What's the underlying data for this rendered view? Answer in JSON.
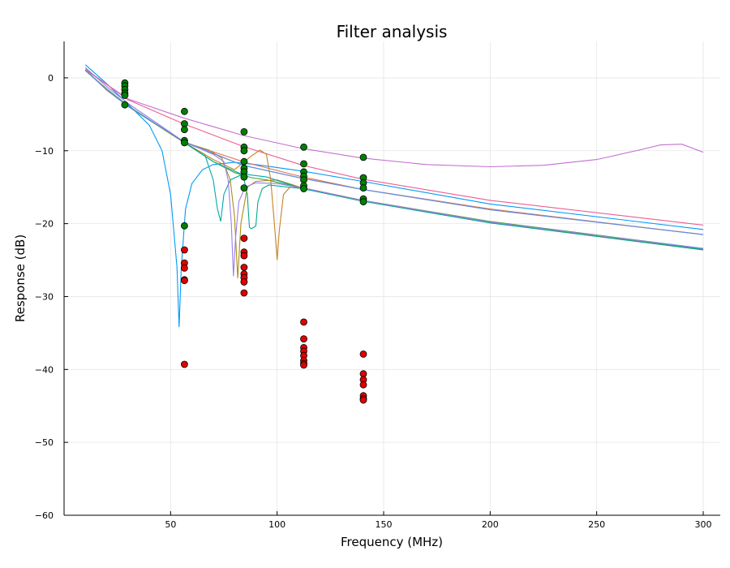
{
  "chart_data": {
    "type": "line",
    "title": "Filter analysis",
    "xlabel": "Frequency (MHz)",
    "ylabel": "Response (dB)",
    "xlim": [
      0,
      308
    ],
    "ylim": [
      -60,
      5
    ],
    "xticks": [
      50,
      100,
      150,
      200,
      250,
      300
    ],
    "yticks": [
      0,
      -10,
      -20,
      -30,
      -40,
      -50,
      -60
    ],
    "ytick_labels": [
      "0",
      "−10",
      "−20",
      "−30",
      "−40",
      "−50",
      "−60"
    ],
    "grid": true,
    "legend": "none",
    "series": [
      {
        "color": "#009af9",
        "points": [
          [
            10,
            1.8
          ],
          [
            20,
            -0.8
          ],
          [
            30,
            -3.6
          ],
          [
            40,
            -6.5
          ],
          [
            46,
            -10
          ],
          [
            50,
            -16
          ],
          [
            53,
            -26
          ],
          [
            54,
            -34.2
          ],
          [
            55,
            -26
          ],
          [
            57,
            -18
          ],
          [
            60,
            -14.5
          ],
          [
            65,
            -12.6
          ],
          [
            70,
            -11.9
          ],
          [
            80,
            -11.6
          ],
          [
            90,
            -11.9
          ],
          [
            112,
            -12.8
          ],
          [
            140,
            -14.2
          ],
          [
            200,
            -17.3
          ],
          [
            300,
            -20.8
          ]
        ]
      },
      {
        "color": "#e26f46",
        "points": [
          [
            10,
            1.1
          ],
          [
            20,
            -1.7
          ],
          [
            30,
            -3.9
          ],
          [
            56,
            -8.8
          ],
          [
            85,
            -11.6
          ],
          [
            112,
            -13.6
          ],
          [
            140,
            -15.3
          ],
          [
            200,
            -18.0
          ],
          [
            300,
            -21.5
          ]
        ]
      },
      {
        "color": "#3da44d",
        "points": [
          [
            10,
            1.0
          ],
          [
            20,
            -1.5
          ],
          [
            30,
            -3.8
          ],
          [
            56,
            -8.8
          ],
          [
            70,
            -11.5
          ],
          [
            80,
            -13.0
          ],
          [
            88,
            -13.7
          ],
          [
            95,
            -14.0
          ],
          [
            112,
            -15.1
          ],
          [
            140,
            -16.8
          ],
          [
            200,
            -19.7
          ],
          [
            300,
            -23.4
          ]
        ]
      },
      {
        "color": "#c271d2",
        "points": [
          [
            10,
            1.2
          ],
          [
            20,
            -0.9
          ],
          [
            30,
            -2.9
          ],
          [
            56,
            -5.5
          ],
          [
            84,
            -7.9
          ],
          [
            112,
            -9.7
          ],
          [
            140,
            -11.0
          ],
          [
            170,
            -11.9
          ],
          [
            200,
            -12.2
          ],
          [
            225,
            -12.0
          ],
          [
            250,
            -11.2
          ],
          [
            270,
            -9.9
          ],
          [
            280,
            -9.2
          ],
          [
            290,
            -9.1
          ],
          [
            300,
            -10.2
          ]
        ]
      },
      {
        "color": "#ac8d18",
        "points": [
          [
            10,
            1.0
          ],
          [
            20,
            -1.6
          ],
          [
            30,
            -3.9
          ],
          [
            56,
            -8.8
          ],
          [
            68,
            -9.9
          ],
          [
            74,
            -11
          ],
          [
            78,
            -14
          ],
          [
            80,
            -19
          ],
          [
            81.5,
            -27.5
          ],
          [
            83,
            -20
          ],
          [
            86,
            -15
          ],
          [
            90,
            -14.2
          ],
          [
            100,
            -14.0
          ],
          [
            112,
            -15.1
          ],
          [
            140,
            -16.8
          ],
          [
            200,
            -19.8
          ],
          [
            300,
            -23.5
          ]
        ]
      },
      {
        "color": "#00a9ad",
        "points": [
          [
            10,
            1.0
          ],
          [
            20,
            -1.6
          ],
          [
            30,
            -3.9
          ],
          [
            56,
            -8.8
          ],
          [
            66,
            -10.5
          ],
          [
            70,
            -14
          ],
          [
            72,
            -18
          ],
          [
            73.5,
            -19.7
          ],
          [
            75,
            -16
          ],
          [
            78,
            -14
          ],
          [
            84,
            -13.2
          ],
          [
            95,
            -13.6
          ],
          [
            112,
            -15.2
          ],
          [
            140,
            -16.9
          ],
          [
            200,
            -19.9
          ],
          [
            300,
            -23.5
          ]
        ]
      },
      {
        "color": "#ed5d92",
        "points": [
          [
            10,
            1.1
          ],
          [
            20,
            -0.9
          ],
          [
            30,
            -3.0
          ],
          [
            56,
            -6.3
          ],
          [
            84,
            -9.4
          ],
          [
            112,
            -12.0
          ],
          [
            140,
            -13.9
          ],
          [
            200,
            -16.8
          ],
          [
            300,
            -20.2
          ]
        ]
      },
      {
        "color": "#c68225",
        "points": [
          [
            10,
            1.0
          ],
          [
            20,
            -1.6
          ],
          [
            30,
            -3.9
          ],
          [
            56,
            -8.8
          ],
          [
            70,
            -11.2
          ],
          [
            80,
            -12.6
          ],
          [
            88,
            -10.7
          ],
          [
            92,
            -9.9
          ],
          [
            95,
            -10.5
          ],
          [
            97,
            -14
          ],
          [
            99,
            -21
          ],
          [
            100,
            -25.0
          ],
          [
            101,
            -21
          ],
          [
            103,
            -16
          ],
          [
            106,
            -15
          ],
          [
            112,
            -15.1
          ],
          [
            140,
            -16.8
          ],
          [
            200,
            -19.8
          ],
          [
            300,
            -23.6
          ]
        ]
      },
      {
        "color": "#00a98d",
        "points": [
          [
            10,
            1.0
          ],
          [
            20,
            -1.6
          ],
          [
            30,
            -3.9
          ],
          [
            56,
            -8.8
          ],
          [
            70,
            -11.5
          ],
          [
            80,
            -12.8
          ],
          [
            84,
            -13.3
          ],
          [
            86,
            -16
          ],
          [
            87,
            -20.5
          ],
          [
            88,
            -20.7
          ],
          [
            90,
            -20.3
          ],
          [
            91,
            -17
          ],
          [
            93,
            -15.2
          ],
          [
            96,
            -14.7
          ],
          [
            112,
            -15.2
          ],
          [
            140,
            -16.9
          ],
          [
            200,
            -19.9
          ],
          [
            300,
            -23.6
          ]
        ]
      },
      {
        "color": "#8e971e",
        "points": [
          [
            10,
            1.1
          ],
          [
            20,
            -1.6
          ],
          [
            30,
            -3.9
          ],
          [
            56,
            -8.8
          ],
          [
            84,
            -12.0
          ],
          [
            112,
            -13.8
          ],
          [
            140,
            -15.3
          ],
          [
            200,
            -18.1
          ],
          [
            300,
            -21.5
          ]
        ]
      },
      {
        "color": "#9b7fe9",
        "points": [
          [
            10,
            1.4
          ],
          [
            20,
            -1.2
          ],
          [
            30,
            -3.5
          ],
          [
            56,
            -8.7
          ],
          [
            70,
            -10.5
          ],
          [
            75,
            -11.5
          ],
          [
            77,
            -14
          ],
          [
            78.5,
            -20
          ],
          [
            79.5,
            -27.2
          ],
          [
            80.5,
            -22
          ],
          [
            82,
            -17
          ],
          [
            85,
            -15
          ],
          [
            90,
            -14.4
          ],
          [
            100,
            -14.5
          ],
          [
            112,
            -15.1
          ],
          [
            140,
            -16.8
          ],
          [
            200,
            -19.8
          ],
          [
            300,
            -23.4
          ]
        ]
      },
      {
        "color": "#618df6",
        "points": [
          [
            10,
            1.0
          ],
          [
            20,
            -1.6
          ],
          [
            30,
            -3.9
          ],
          [
            56,
            -8.7
          ],
          [
            84,
            -12.0
          ],
          [
            112,
            -13.8
          ],
          [
            140,
            -15.3
          ],
          [
            200,
            -18.1
          ],
          [
            300,
            -21.5
          ]
        ]
      }
    ],
    "green_points": {
      "color": "#008000",
      "points": [
        [
          28.5,
          -0.7
        ],
        [
          28.5,
          -1.1
        ],
        [
          28.5,
          -1.6
        ],
        [
          28.5,
          -2.1
        ],
        [
          28.5,
          -2.4
        ],
        [
          28.5,
          -3.7
        ],
        [
          56.5,
          -4.6
        ],
        [
          56.5,
          -6.3
        ],
        [
          56.5,
          -7.1
        ],
        [
          56.5,
          -8.6
        ],
        [
          56.5,
          -8.9
        ],
        [
          56.5,
          -20.3
        ],
        [
          84.5,
          -7.4
        ],
        [
          84.5,
          -9.5
        ],
        [
          84.5,
          -10.0
        ],
        [
          84.5,
          -11.5
        ],
        [
          84.5,
          -12.4
        ],
        [
          84.5,
          -12.9
        ],
        [
          84.5,
          -13.6
        ],
        [
          84.5,
          -15.1
        ],
        [
          112.5,
          -9.5
        ],
        [
          112.5,
          -11.8
        ],
        [
          112.5,
          -12.9
        ],
        [
          112.5,
          -13.5
        ],
        [
          112.5,
          -14.0
        ],
        [
          112.5,
          -14.8
        ],
        [
          112.5,
          -15.2
        ],
        [
          140.5,
          -10.9
        ],
        [
          140.5,
          -13.7
        ],
        [
          140.5,
          -14.4
        ],
        [
          140.5,
          -15.1
        ],
        [
          140.5,
          -16.6
        ],
        [
          140.5,
          -17.0
        ]
      ]
    },
    "red_points": {
      "color": "#e00000",
      "points": [
        [
          56.5,
          -23.6
        ],
        [
          56.5,
          -25.4
        ],
        [
          56.5,
          -26.1
        ],
        [
          56.5,
          -27.7
        ],
        [
          56.5,
          -27.8
        ],
        [
          56.5,
          -39.3
        ],
        [
          84.5,
          -22.0
        ],
        [
          84.5,
          -23.9
        ],
        [
          84.5,
          -24.4
        ],
        [
          84.5,
          -26.0
        ],
        [
          84.5,
          -26.9
        ],
        [
          84.5,
          -27.4
        ],
        [
          84.5,
          -28.0
        ],
        [
          84.5,
          -29.5
        ],
        [
          112.5,
          -33.5
        ],
        [
          112.5,
          -35.8
        ],
        [
          112.5,
          -37.0
        ],
        [
          112.5,
          -37.5
        ],
        [
          112.5,
          -38.1
        ],
        [
          112.5,
          -38.8
        ],
        [
          112.5,
          -39.2
        ],
        [
          112.5,
          -39.4
        ],
        [
          140.5,
          -37.9
        ],
        [
          140.5,
          -40.6
        ],
        [
          140.5,
          -41.4
        ],
        [
          140.5,
          -42.1
        ],
        [
          140.5,
          -43.6
        ],
        [
          140.5,
          -44.0
        ],
        [
          140.5,
          -44.2
        ]
      ]
    }
  }
}
